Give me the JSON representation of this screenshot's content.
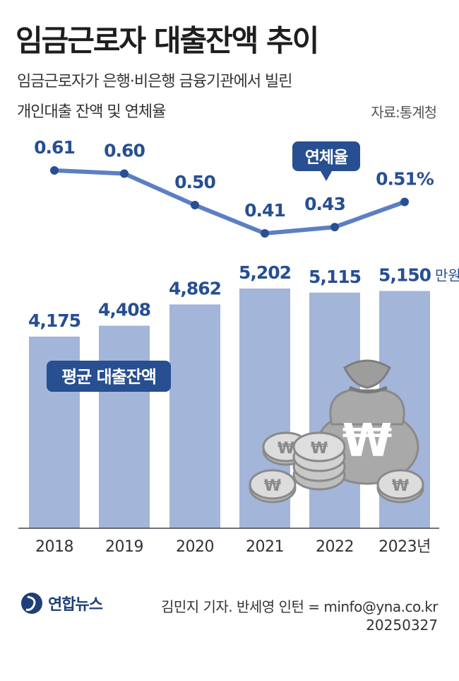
{
  "header": {
    "title": "임금근로자 대출잔액 추이",
    "subtitle_line1": "임금근로자가 은행·비은행 금융기관에서 빌린",
    "subtitle_line2": "개인대출 잔액 및 연체율",
    "source": "자료:통계청"
  },
  "chart_data": {
    "type": "bar+line",
    "categories": [
      "2018",
      "2019",
      "2020",
      "2021",
      "2022",
      "2023년"
    ],
    "bars": {
      "name": "평균 대출잔액",
      "unit": "만원",
      "values": [
        4175,
        4408,
        4862,
        5202,
        5115,
        5150
      ],
      "labels": [
        "4,175",
        "4,408",
        "4,862",
        "5,202",
        "5,115",
        "5,150"
      ]
    },
    "line": {
      "name": "연체율",
      "unit": "%",
      "values": [
        0.61,
        0.6,
        0.5,
        0.41,
        0.43,
        0.51
      ],
      "labels": [
        "0.61",
        "0.60",
        "0.50",
        "0.41",
        "0.43",
        "0.51%"
      ]
    },
    "colors": {
      "bar": "#a3b5d9",
      "line": "#5c7fc4",
      "marker": "#274f91",
      "label": "#274f91",
      "badge": "#274f91"
    }
  },
  "footer": {
    "brand": "연합뉴스",
    "credit": "김민지 기자. 반세영 인턴 = minfo@yna.co.kr",
    "date": "20250327"
  }
}
